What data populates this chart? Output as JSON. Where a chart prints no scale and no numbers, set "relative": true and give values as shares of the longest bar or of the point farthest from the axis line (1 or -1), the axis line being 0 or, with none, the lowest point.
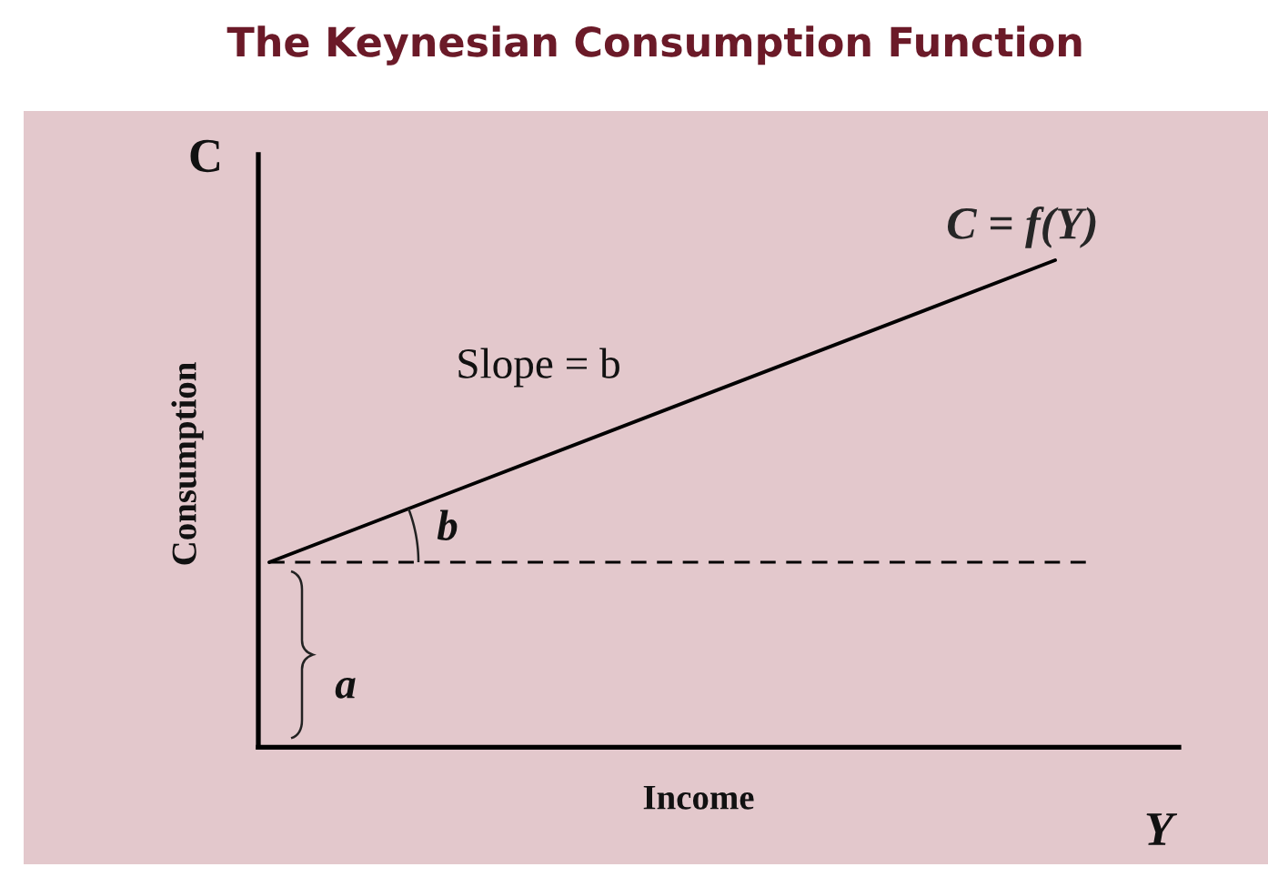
{
  "chart_data": {
    "type": "line",
    "title": "The Keynesian Consumption Function",
    "xlabel": "Income",
    "ylabel": "Consumption",
    "relative": true,
    "categories": [
      null,
      null
    ],
    "series": [
      {
        "name": "C = f(Y)",
        "color": "#000000",
        "values": [
          0.38,
          1
        ]
      }
    ],
    "ref_lines": [
      {
        "axis": "y",
        "value": 0.38,
        "color": "#000000",
        "line_style": "dashed"
      }
    ],
    "annotations": [
      "C",
      "Y",
      "Slope = b",
      "b",
      "a"
    ]
  }
}
